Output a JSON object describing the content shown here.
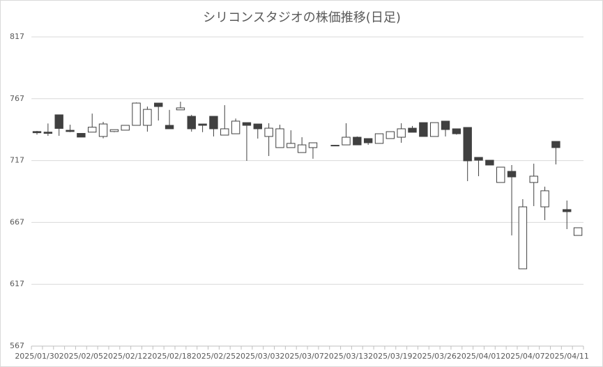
{
  "chart_data": {
    "type": "candlestick",
    "title": "シリコンスタジオの株価推移(日足)",
    "categories": [
      "2025/01/30",
      null,
      null,
      null,
      "2025/02/05",
      null,
      null,
      null,
      "2025/02/12",
      null,
      null,
      null,
      "2025/02/18",
      null,
      null,
      null,
      "2025/02/25",
      null,
      null,
      null,
      "2025/03/03",
      null,
      null,
      null,
      "2025/03/07",
      null,
      null,
      null,
      "2025/03/13",
      null,
      null,
      null,
      "2025/03/19",
      null,
      null,
      null,
      "2025/03/26",
      null,
      null,
      null,
      "2025/04/01",
      null,
      null,
      null,
      "2025/04/07",
      null,
      null,
      null,
      "2025/04/11",
      null
    ],
    "open": [
      740.5,
      740,
      754,
      741.5,
      739,
      740,
      736.5,
      740.5,
      741.6,
      745.5,
      745.5,
      763.5,
      745.5,
      758,
      752.8,
      746.6,
      752.8,
      737.6,
      738.7,
      747.7,
      746.6,
      736.5,
      727.5,
      727.5,
      723.5,
      727.5,
      null,
      729.4,
      729.7,
      735.9,
      734.8,
      730.9,
      734.8,
      735.9,
      743.2,
      747.7,
      736.5,
      748.9,
      742.7,
      743.8,
      719.6,
      717.3,
      699.3,
      708.3,
      629.5,
      699.3,
      679.6,
      732.5,
      677.4,
      656.5
    ],
    "high": [
      741,
      747,
      754,
      746,
      739,
      755,
      748.3,
      742,
      745.5,
      764,
      760.7,
      763.5,
      758,
      764.6,
      754,
      746.6,
      752.8,
      761.8,
      751,
      747.7,
      746.6,
      747.2,
      746,
      741.5,
      735.9,
      731.4,
      null,
      729.7,
      747.2,
      736.5,
      734.8,
      738.7,
      740.4,
      747.2,
      745,
      747.7,
      747.7,
      748.9,
      742.7,
      743.8,
      719.6,
      717.3,
      711.7,
      713.4,
      685.8,
      714.5,
      695.9,
      732.5,
      684.7,
      662.7
    ],
    "low": [
      738,
      737,
      737,
      740,
      736,
      740,
      735,
      740,
      741.6,
      745.5,
      740.4,
      749.4,
      742.7,
      758,
      740.4,
      740,
      736.5,
      737.6,
      738.7,
      716.8,
      734.8,
      720.7,
      727.5,
      727.5,
      723.5,
      718.5,
      null,
      728.8,
      729.7,
      729.7,
      729.7,
      730.9,
      734.8,
      731.4,
      739.9,
      736.5,
      736.5,
      736.5,
      738,
      700.4,
      704.4,
      713.4,
      699.3,
      656.5,
      629.5,
      680.2,
      668.9,
      713.9,
      661.6,
      656.5
    ],
    "close": [
      739.5,
      739,
      743,
      740.5,
      736,
      744,
      746.6,
      742,
      745.5,
      763.5,
      758.4,
      760.7,
      742.7,
      759.6,
      742.7,
      745.5,
      742.7,
      742.7,
      748.9,
      745.5,
      742.7,
      743.2,
      742.7,
      730.9,
      729.7,
      731.4,
      null,
      729.1,
      735.9,
      729.7,
      731.4,
      738.7,
      740.4,
      742.7,
      739.9,
      736.5,
      747.7,
      742.1,
      738.7,
      716.8,
      717.3,
      713.4,
      711.7,
      703.8,
      679.6,
      704.4,
      692.6,
      727.5,
      675.7,
      662.7
    ],
    "up_color": "#ffffff",
    "down_color": "#404040",
    "edge_color": "#404040",
    "ylim": [
      567,
      817
    ],
    "yticks": [
      567,
      617,
      667,
      717,
      767,
      817
    ],
    "grid": true
  }
}
